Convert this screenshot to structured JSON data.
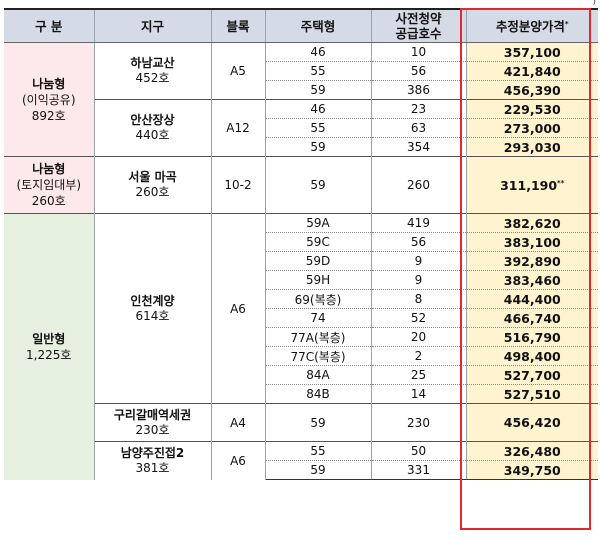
{
  "top_fragment": ")",
  "headers": {
    "category": "구 분",
    "district": "지구",
    "block": "블록",
    "housing_type": "주택형",
    "supply_line1": "사전청약",
    "supply_line2": "공급호수",
    "price": "추정분양가격",
    "price_mark": "*"
  },
  "categories": {
    "nanum_profit": {
      "name": "나눔형",
      "sub": "(이익공유)",
      "count": "892호"
    },
    "nanum_land": {
      "name": "나눔형",
      "sub": "(토지임대부)",
      "count": "260호"
    },
    "general": {
      "name": "일반형",
      "count": "1,225호"
    }
  },
  "districts": {
    "hanam": {
      "name": "하남교산",
      "count": "452호",
      "block": "A5"
    },
    "ansan": {
      "name": "안산장상",
      "count": "440호",
      "block": "A12"
    },
    "seoul": {
      "name": "서울 마곡",
      "count": "260호",
      "block": "10-2"
    },
    "incheon": {
      "name": "인천계양",
      "count": "614호",
      "block": "A6"
    },
    "guri": {
      "name": "구리갈매역세권",
      "count": "230호",
      "block": "A4"
    },
    "namyang": {
      "name": "남양주진접2",
      "count": "381호",
      "block": "A6"
    }
  },
  "rows": [
    {
      "type": "46",
      "supply": "10",
      "price": "357,100"
    },
    {
      "type": "55",
      "supply": "56",
      "price": "421,840"
    },
    {
      "type": "59",
      "supply": "386",
      "price": "456,390"
    },
    {
      "type": "46",
      "supply": "23",
      "price": "229,530"
    },
    {
      "type": "55",
      "supply": "63",
      "price": "273,000"
    },
    {
      "type": "59",
      "supply": "354",
      "price": "293,030"
    },
    {
      "type": "59",
      "supply": "260",
      "price": "311,190",
      "mark": "**"
    },
    {
      "type": "59A",
      "supply": "419",
      "price": "382,620"
    },
    {
      "type": "59C",
      "supply": "56",
      "price": "383,100"
    },
    {
      "type": "59D",
      "supply": "9",
      "price": "392,890"
    },
    {
      "type": "59H",
      "supply": "9",
      "price": "383,460"
    },
    {
      "type": "69(복층)",
      "supply": "8",
      "price": "444,400"
    },
    {
      "type": "74",
      "supply": "52",
      "price": "466,740"
    },
    {
      "type": "77A(복층)",
      "supply": "20",
      "price": "516,790"
    },
    {
      "type": "77C(복층)",
      "supply": "2",
      "price": "498,400"
    },
    {
      "type": "84A",
      "supply": "25",
      "price": "527,700"
    },
    {
      "type": "84B",
      "supply": "14",
      "price": "527,510"
    },
    {
      "type": "59",
      "supply": "230",
      "price": "456,420"
    },
    {
      "type": "55",
      "supply": "50",
      "price": "326,480"
    },
    {
      "type": "59",
      "supply": "331",
      "price": "349,750"
    }
  ]
}
